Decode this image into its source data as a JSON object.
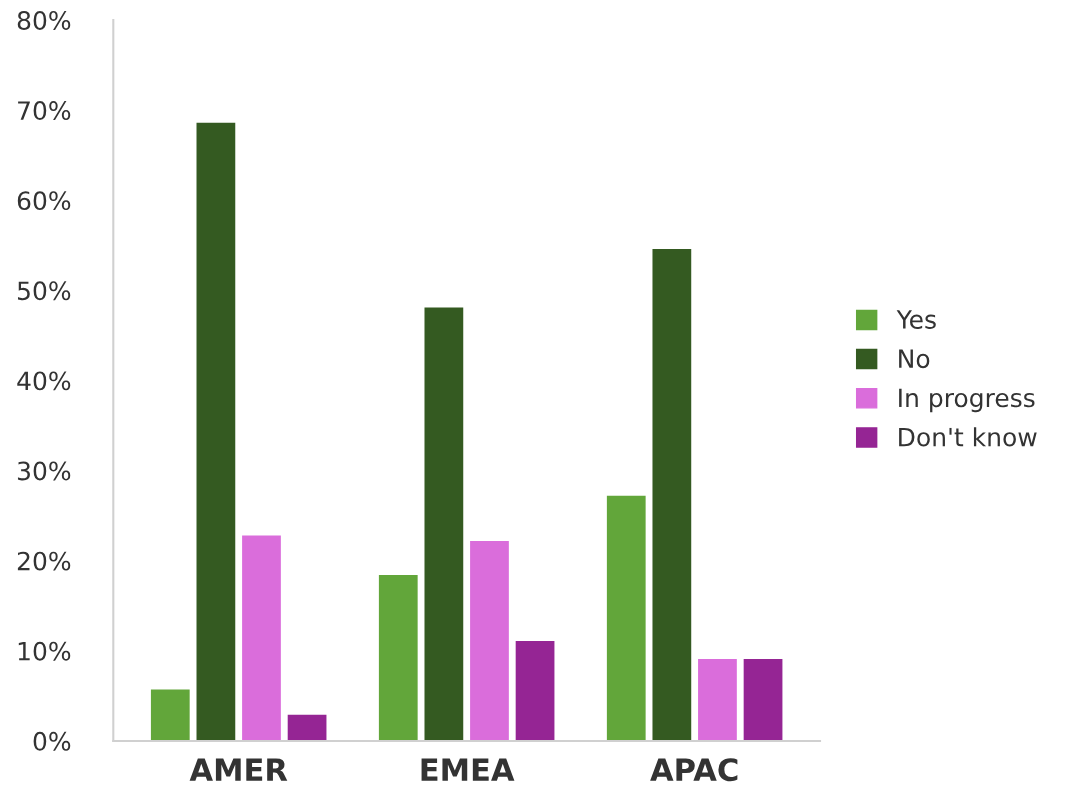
{
  "chart_data": {
    "type": "bar",
    "categories": [
      "AMER",
      "EMEA",
      "APAC"
    ],
    "series": [
      {
        "name": "Yes",
        "color": "#62a63a",
        "values": [
          5.7,
          18.4,
          27.2
        ]
      },
      {
        "name": "No",
        "color": "#345a21",
        "values": [
          68.6,
          48.1,
          54.6
        ]
      },
      {
        "name": "In progress",
        "color": "#da6ddb",
        "values": [
          22.8,
          22.2,
          9.1
        ]
      },
      {
        "name": "Don't know",
        "color": "#952594",
        "values": [
          2.9,
          11.1,
          9.1
        ]
      }
    ],
    "ylim": [
      0,
      80
    ],
    "yticks": [
      {
        "value": 0,
        "label": "0%"
      },
      {
        "value": 10,
        "label": "10%"
      },
      {
        "value": 20,
        "label": "20%"
      },
      {
        "value": 30,
        "label": "30%"
      },
      {
        "value": 40,
        "label": "40%"
      },
      {
        "value": 50,
        "label": "50%"
      },
      {
        "value": 60,
        "label": "60%"
      },
      {
        "value": 70,
        "label": "70%"
      },
      {
        "value": 80,
        "label": "80%"
      }
    ],
    "grid": false,
    "legend": "right"
  }
}
